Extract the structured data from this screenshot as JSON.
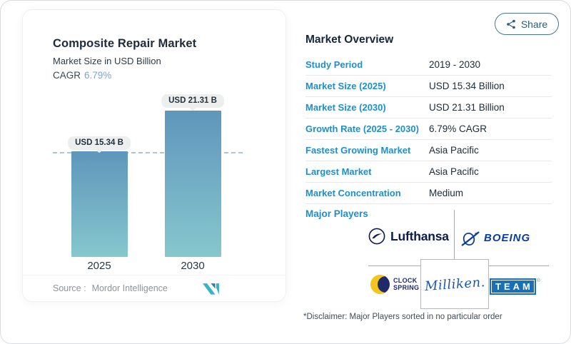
{
  "share": {
    "label": "Share",
    "icon": "share-nodes-icon"
  },
  "left_card": {
    "title": "Composite Repair Market",
    "subtitle": "Market Size in USD Billion",
    "cagr_label": "CAGR",
    "cagr_value": "6.79%",
    "source_label": "Source :",
    "source_value": "Mordor Intelligence",
    "logo": "mordor-intelligence-logo"
  },
  "chart_data": {
    "type": "bar",
    "title": "Composite Repair Market",
    "subtitle": "Market Size in USD Billion",
    "unit": "USD Billion",
    "cagr": "6.79%",
    "categories": [
      "2025",
      "2030"
    ],
    "values": [
      15.34,
      21.31
    ],
    "value_labels": [
      "USD 15.34 B",
      "USD 21.31 B"
    ],
    "ylim": [
      0,
      21.31
    ],
    "grid": false,
    "reference_line": {
      "at_value": 15.34,
      "style": "dashed"
    },
    "bar_gradient_top": "#5f96bc",
    "bar_gradient_bottom": "#86c7cd"
  },
  "overview": {
    "heading": "Market Overview",
    "rows": [
      {
        "label": "Study Period",
        "value": "2019 - 2030"
      },
      {
        "label": "Market Size (2025)",
        "value": "USD 15.34 Billion"
      },
      {
        "label": "Market Size (2030)",
        "value": "USD 21.31 Billion"
      },
      {
        "label": "Growth Rate (2025 - 2030)",
        "value": "6.79% CAGR"
      },
      {
        "label": "Fastest Growing Market",
        "value": "Asia Pacific"
      },
      {
        "label": "Largest Market",
        "value": "Asia Pacific"
      },
      {
        "label": "Market Concentration",
        "value": "Medium"
      }
    ],
    "major_players_label": "Major Players",
    "players": {
      "lufthansa": "Lufthansa",
      "boeing": "BOEING",
      "clockspring_line1": "CLOCK",
      "clockspring_line2": "SPRING",
      "milliken": "Milliken.",
      "team": "TEAM",
      "team_reg": "®"
    },
    "disclaimer": "*Disclaimer: Major Players sorted in no particular order"
  },
  "colors": {
    "label_blue": "#1f8fca",
    "heading_navy": "#14283c",
    "cagr_blue": "#7aa7cb",
    "share_teal": "#2d5d77",
    "boeing_blue": "#0b3da0",
    "lufthansa_navy": "#0d1b4c",
    "team_blue": "#1a70b7",
    "clockspring_yellow": "#f2c61e",
    "clockspring_navy": "#1f2b69",
    "milliken_blue": "#1d58a7",
    "mordor_teal": "#35b4c2",
    "mordor_blue": "#2e7fae"
  }
}
